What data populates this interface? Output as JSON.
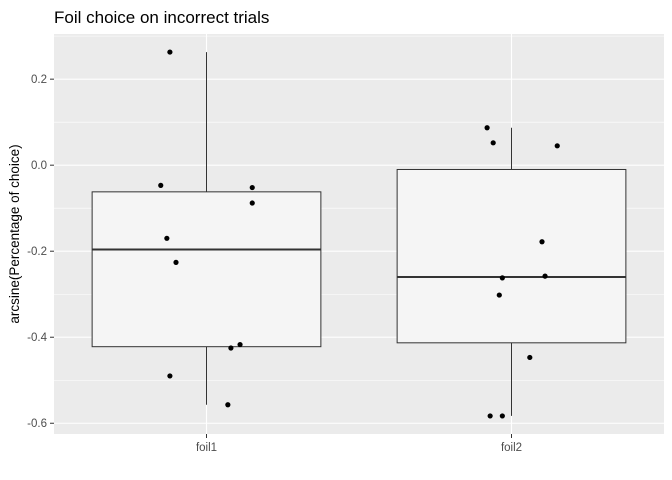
{
  "chart_data": {
    "type": "boxplot",
    "title": "Foil choice on incorrect trials",
    "xlabel": "",
    "ylabel": "arcsine(Percentage of choice)",
    "categories": [
      "foil1",
      "foil2"
    ],
    "ylim": [
      -0.625,
      0.305
    ],
    "yticks": [
      -0.6,
      -0.4,
      -0.2,
      0.0,
      0.2
    ],
    "ytick_labels": [
      "-0.6",
      "-0.4",
      "-0.2",
      "0.0",
      "0.2"
    ],
    "grid": true,
    "legend": "none",
    "boxes": [
      {
        "category": "foil1",
        "whisker_low": -0.557,
        "q1": -0.422,
        "median": -0.196,
        "q3": -0.062,
        "whisker_high": 0.263
      },
      {
        "category": "foil2",
        "whisker_low": -0.583,
        "q1": -0.413,
        "median": -0.26,
        "q3": -0.01,
        "whisker_high": 0.087
      }
    ],
    "points": [
      {
        "category": "foil1",
        "jitter": -0.12,
        "y": 0.263
      },
      {
        "category": "foil1",
        "jitter": -0.15,
        "y": -0.047
      },
      {
        "category": "foil1",
        "jitter": 0.15,
        "y": -0.052
      },
      {
        "category": "foil1",
        "jitter": 0.15,
        "y": -0.088
      },
      {
        "category": "foil1",
        "jitter": -0.13,
        "y": -0.17
      },
      {
        "category": "foil1",
        "jitter": -0.1,
        "y": -0.226
      },
      {
        "category": "foil1",
        "jitter": 0.11,
        "y": -0.417
      },
      {
        "category": "foil1",
        "jitter": 0.08,
        "y": -0.425
      },
      {
        "category": "foil1",
        "jitter": -0.12,
        "y": -0.49
      },
      {
        "category": "foil1",
        "jitter": 0.07,
        "y": -0.557
      },
      {
        "category": "foil2",
        "jitter": -0.08,
        "y": 0.087
      },
      {
        "category": "foil2",
        "jitter": -0.06,
        "y": 0.052
      },
      {
        "category": "foil2",
        "jitter": 0.15,
        "y": 0.045
      },
      {
        "category": "foil2",
        "jitter": 0.1,
        "y": -0.178
      },
      {
        "category": "foil2",
        "jitter": -0.03,
        "y": -0.262
      },
      {
        "category": "foil2",
        "jitter": 0.11,
        "y": -0.258
      },
      {
        "category": "foil2",
        "jitter": -0.04,
        "y": -0.302
      },
      {
        "category": "foil2",
        "jitter": 0.06,
        "y": -0.447
      },
      {
        "category": "foil2",
        "jitter": -0.07,
        "y": -0.583
      },
      {
        "category": "foil2",
        "jitter": -0.03,
        "y": -0.583
      }
    ],
    "colors": {
      "panel": "#ebebeb",
      "grid_major": "#ffffff",
      "box_fill": "#f5f5f5",
      "box_line": "#333333",
      "point": "#000000",
      "tick": "#333333"
    }
  }
}
